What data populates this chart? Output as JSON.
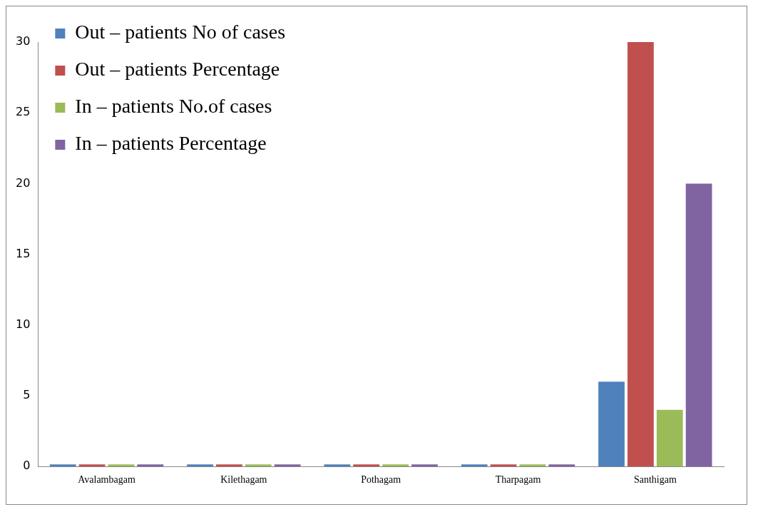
{
  "chart_data": {
    "type": "bar",
    "categories": [
      "Avalambagam",
      "Kilethagam",
      "Pothagam",
      "Tharpagam",
      "Santhigam"
    ],
    "series": [
      {
        "name": "Out – patients No of cases",
        "color": "#4f81bd",
        "values": [
          0,
          0,
          0,
          0,
          6
        ]
      },
      {
        "name": "Out – patients Percentage",
        "color": "#c0504d",
        "values": [
          0,
          0,
          0,
          0,
          30
        ]
      },
      {
        "name": "In – patients No.of cases",
        "color": "#9bbb59",
        "values": [
          0,
          0,
          0,
          0,
          4
        ]
      },
      {
        "name": "In – patients Percentage",
        "color": "#8064a2",
        "values": [
          0,
          0,
          0,
          0,
          20
        ]
      }
    ],
    "ylim": [
      0,
      30
    ],
    "yticks": [
      0,
      5,
      10,
      15,
      20,
      25,
      30
    ],
    "grid": false,
    "legend": "top left"
  }
}
